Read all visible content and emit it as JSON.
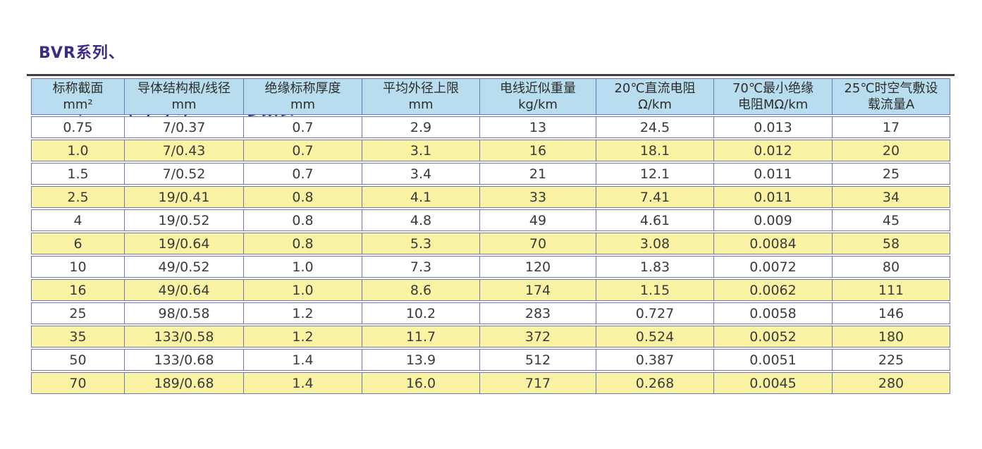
{
  "title": {
    "line1": "BVR系列、",
    "line2": "BVR、ZR（A,B,C）–BVR参数表"
  },
  "colors": {
    "title": "#3e2b87",
    "header_bg": "#b8ddee",
    "row_alt_bg": "#faf3a4",
    "grid": "#7177b6",
    "top_rule": "#3f3f41",
    "text": "#3a3a3a"
  },
  "table": {
    "columns": [
      {
        "line1": "标称截面",
        "line2": "mm²"
      },
      {
        "line1": "导体结构根/线径",
        "line2": "mm"
      },
      {
        "line1": "绝缘标称厚度",
        "line2": "mm"
      },
      {
        "line1": "平均外径上限",
        "line2": "mm"
      },
      {
        "line1": "电线近似重量",
        "line2": "kg/km"
      },
      {
        "line1": "20℃直流电阻",
        "line2": "Ω/km"
      },
      {
        "line1": "70℃最小绝缘",
        "line2": "电阻MΩ/km"
      },
      {
        "line1": "25℃时空气敷设",
        "line2": "载流量A"
      }
    ],
    "rows": [
      [
        "0.75",
        "7/0.37",
        "0.7",
        "2.9",
        "13",
        "24.5",
        "0.013",
        "17"
      ],
      [
        "1.0",
        "7/0.43",
        "0.7",
        "3.1",
        "16",
        "18.1",
        "0.012",
        "20"
      ],
      [
        "1.5",
        "7/0.52",
        "0.7",
        "3.4",
        "21",
        "12.1",
        "0.011",
        "25"
      ],
      [
        "2.5",
        "19/0.41",
        "0.8",
        "4.1",
        "33",
        "7.41",
        "0.011",
        "34"
      ],
      [
        "4",
        "19/0.52",
        "0.8",
        "4.8",
        "49",
        "4.61",
        "0.009",
        "45"
      ],
      [
        "6",
        "19/0.64",
        "0.8",
        "5.3",
        "70",
        "3.08",
        "0.0084",
        "58"
      ],
      [
        "10",
        "49/0.52",
        "1.0",
        "7.3",
        "120",
        "1.83",
        "0.0072",
        "80"
      ],
      [
        "16",
        "49/0.64",
        "1.0",
        "8.6",
        "174",
        "1.15",
        "0.0062",
        "111"
      ],
      [
        "25",
        "98/0.58",
        "1.2",
        "10.2",
        "283",
        "0.727",
        "0.0058",
        "146"
      ],
      [
        "35",
        "133/0.58",
        "1.2",
        "11.7",
        "372",
        "0.524",
        "0.0052",
        "180"
      ],
      [
        "50",
        "133/0.68",
        "1.4",
        "13.9",
        "512",
        "0.387",
        "0.0051",
        "225"
      ],
      [
        "70",
        "189/0.68",
        "1.4",
        "16.0",
        "717",
        "0.268",
        "0.0045",
        "280"
      ]
    ]
  }
}
